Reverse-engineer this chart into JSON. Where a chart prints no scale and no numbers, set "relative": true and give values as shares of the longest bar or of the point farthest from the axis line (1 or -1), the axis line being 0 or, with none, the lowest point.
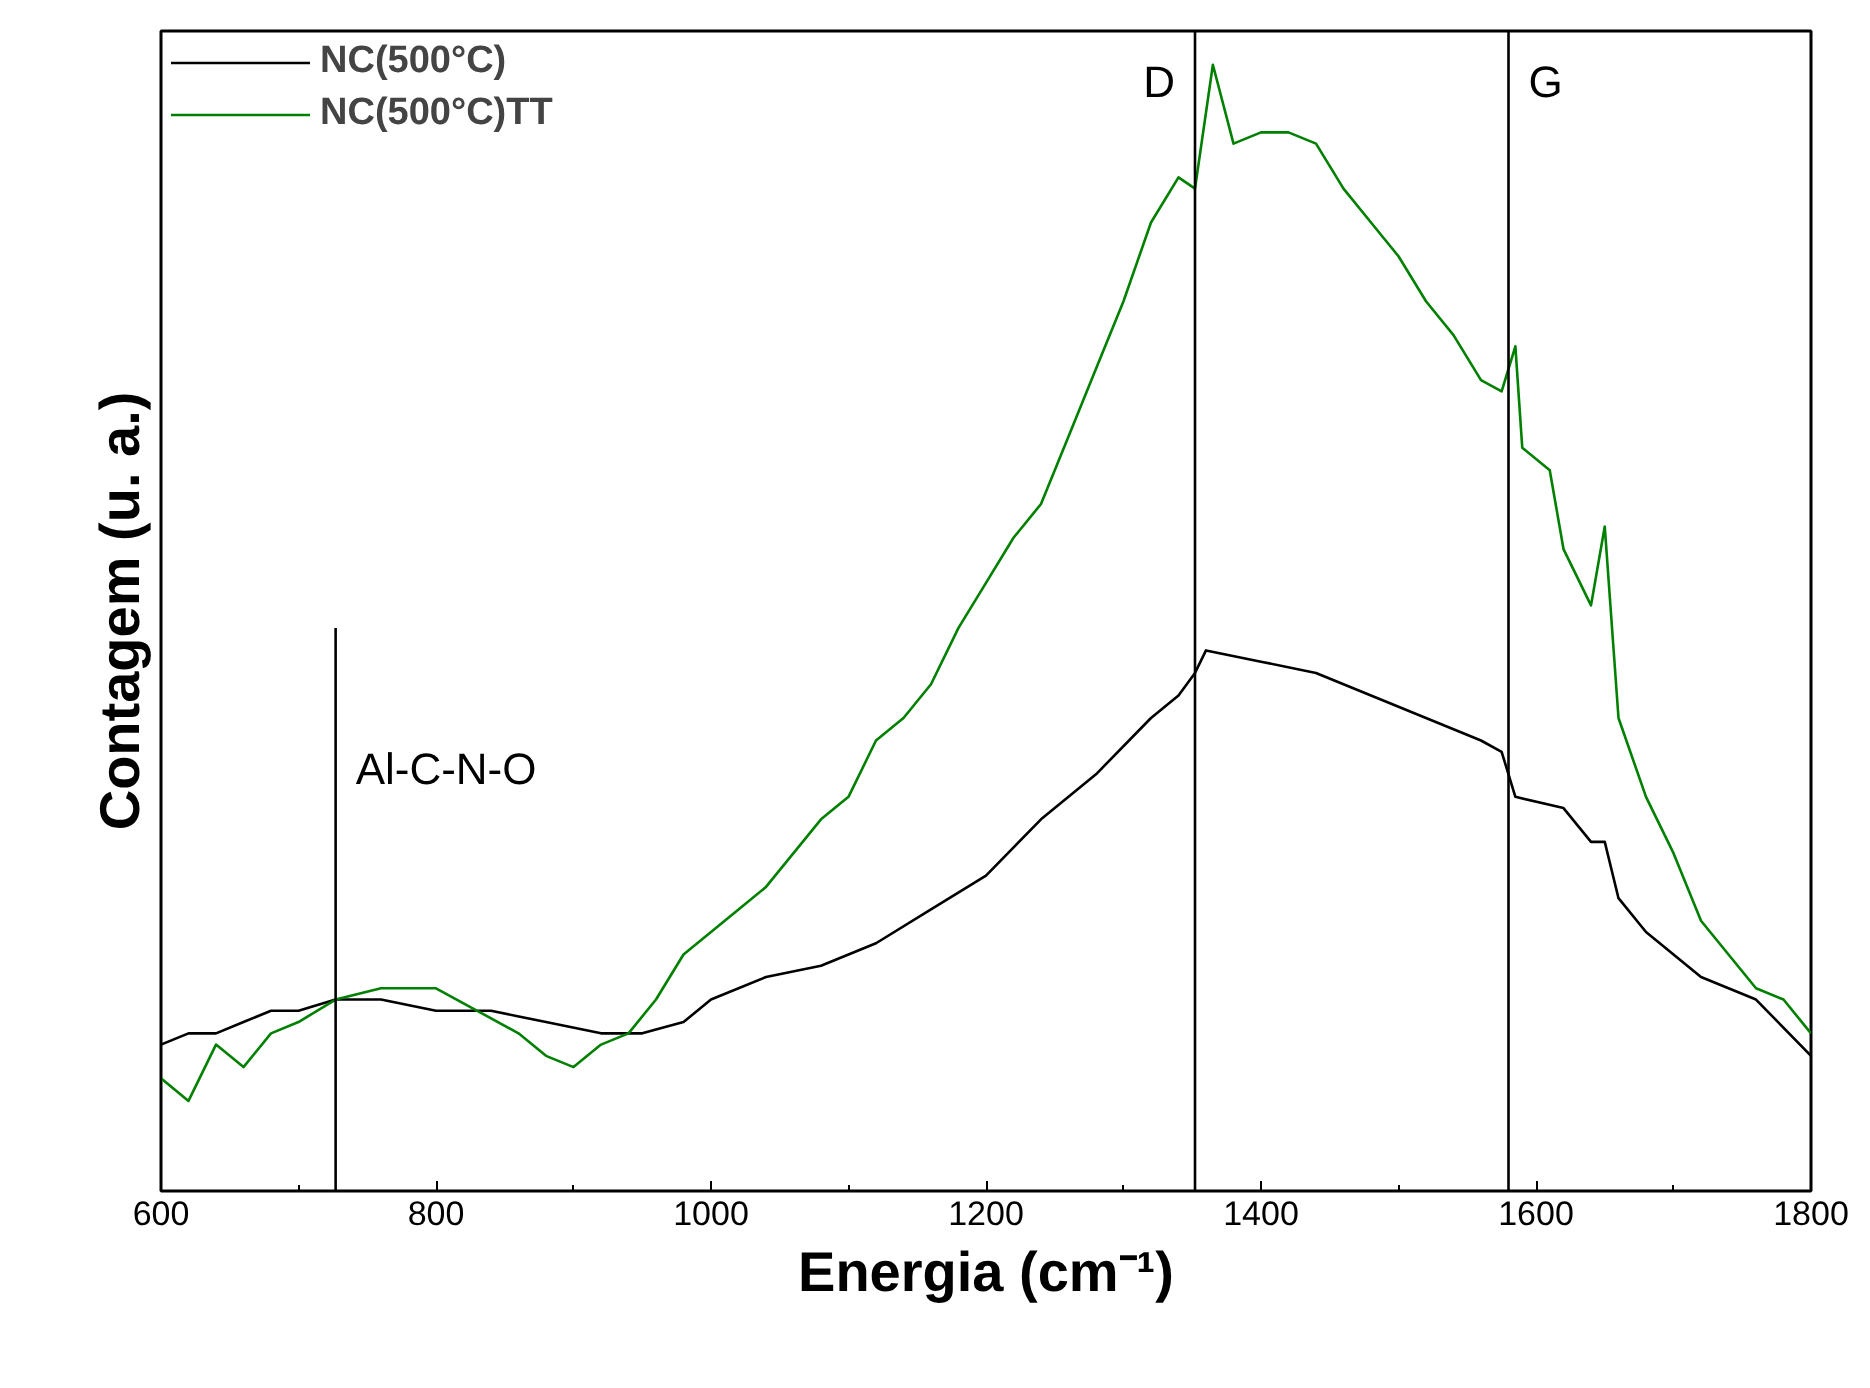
{
  "chart_data": {
    "type": "line",
    "xlabel": "Energia (cm⁻¹)",
    "ylabel": "Contagem (u. a.)",
    "relative": true,
    "xlim": [
      600,
      1800
    ],
    "xticks": [
      600,
      800,
      1000,
      1200,
      1400,
      1600,
      1800
    ],
    "grid": false,
    "legend": "top left",
    "marker": "none",
    "line_style": "solid",
    "series": [
      {
        "name": "NC(500°C)",
        "color": "#000000",
        "x": [
          600,
          620,
          640,
          660,
          680,
          700,
          727,
          760,
          800,
          840,
          880,
          920,
          950,
          980,
          1000,
          1040,
          1080,
          1120,
          1160,
          1200,
          1240,
          1280,
          1320,
          1340,
          1352,
          1360,
          1400,
          1440,
          1480,
          1520,
          1560,
          1575,
          1585,
          1620,
          1640,
          1650,
          1660,
          1680,
          1700,
          1720,
          1760,
          1800
        ],
        "values": [
          0.13,
          0.14,
          0.14,
          0.15,
          0.16,
          0.16,
          0.17,
          0.17,
          0.16,
          0.16,
          0.15,
          0.14,
          0.14,
          0.15,
          0.17,
          0.19,
          0.2,
          0.22,
          0.25,
          0.28,
          0.33,
          0.37,
          0.42,
          0.44,
          0.46,
          0.48,
          0.47,
          0.46,
          0.44,
          0.42,
          0.4,
          0.39,
          0.35,
          0.34,
          0.31,
          0.31,
          0.26,
          0.23,
          0.21,
          0.19,
          0.17,
          0.12
        ]
      },
      {
        "name": "NC(500°C)TT",
        "color": "#008000",
        "x": [
          600,
          620,
          640,
          660,
          680,
          700,
          727,
          760,
          800,
          830,
          860,
          880,
          900,
          920,
          940,
          960,
          980,
          1000,
          1020,
          1040,
          1060,
          1080,
          1100,
          1120,
          1140,
          1160,
          1180,
          1200,
          1220,
          1240,
          1260,
          1280,
          1300,
          1320,
          1340,
          1352,
          1365,
          1380,
          1400,
          1420,
          1440,
          1460,
          1480,
          1500,
          1520,
          1540,
          1560,
          1575,
          1585,
          1590,
          1610,
          1620,
          1640,
          1650,
          1660,
          1680,
          1700,
          1720,
          1740,
          1760,
          1780,
          1800
        ],
        "values": [
          0.1,
          0.08,
          0.13,
          0.11,
          0.14,
          0.15,
          0.17,
          0.18,
          0.18,
          0.16,
          0.14,
          0.12,
          0.11,
          0.13,
          0.14,
          0.17,
          0.21,
          0.23,
          0.25,
          0.27,
          0.3,
          0.33,
          0.35,
          0.4,
          0.42,
          0.45,
          0.5,
          0.54,
          0.58,
          0.61,
          0.67,
          0.73,
          0.79,
          0.86,
          0.9,
          0.89,
          1.0,
          0.93,
          0.94,
          0.94,
          0.93,
          0.89,
          0.86,
          0.83,
          0.79,
          0.76,
          0.72,
          0.71,
          0.75,
          0.66,
          0.64,
          0.57,
          0.52,
          0.59,
          0.42,
          0.35,
          0.3,
          0.24,
          0.21,
          0.18,
          0.17,
          0.14
        ]
      }
    ],
    "ref_lines": [
      {
        "axis": "x",
        "value": 727,
        "label": "Al-C-N-O"
      },
      {
        "axis": "x",
        "value": 1352,
        "label": "D"
      },
      {
        "axis": "x",
        "value": 1580,
        "label": "G"
      }
    ]
  }
}
